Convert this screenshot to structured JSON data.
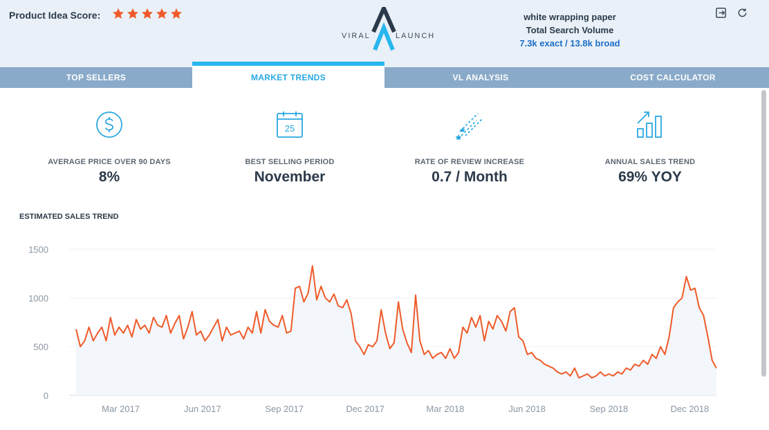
{
  "header": {
    "score_label": "Product Idea Score:",
    "stars": 5,
    "logo": {
      "left": "VIRAL",
      "right": "LAUNCH"
    },
    "keyword": "white wrapping paper",
    "volume_label": "Total Search Volume",
    "volume_value": "7.3k exact / 13.8k broad",
    "icons": [
      "exit-icon",
      "refresh-icon"
    ]
  },
  "tabs": [
    {
      "label": "TOP SELLERS",
      "active": false
    },
    {
      "label": "MARKET TRENDS",
      "active": true
    },
    {
      "label": "VL ANALYSIS",
      "active": false
    },
    {
      "label": "COST CALCULATOR",
      "active": false
    }
  ],
  "metrics": [
    {
      "icon": "dollar-circle-icon",
      "label": "AVERAGE PRICE OVER 90 DAYS",
      "value": "8%"
    },
    {
      "icon": "calendar-icon",
      "label": "BEST SELLING PERIOD",
      "value": "November",
      "calendar_day": "25"
    },
    {
      "icon": "shooting-stars-icon",
      "label": "RATE OF REVIEW INCREASE",
      "value": "0.7 / Month"
    },
    {
      "icon": "bar-growth-icon",
      "label": "ANNUAL SALES TREND",
      "value": "69% YOY"
    }
  ],
  "chart_title": "ESTIMATED SALES TREND",
  "colors": {
    "accent": "#27a9e1",
    "line": "#ef5a28",
    "tab_bg": "#8aaac9",
    "header_bg": "#eaf0f7"
  },
  "chart_data": {
    "type": "line",
    "title": "ESTIMATED SALES TREND",
    "xlabel": "",
    "ylabel": "",
    "ylim": [
      0,
      1500
    ],
    "yticks": [
      0,
      500,
      1000,
      1500
    ],
    "xticks": [
      "Mar 2017",
      "Jun 2017",
      "Sep 2017",
      "Dec 2017",
      "Mar 2018",
      "Jun 2018",
      "Sep 2018",
      "Dec 2018"
    ],
    "grid": true,
    "legend": "none",
    "series": [
      {
        "x_start": "2017-01-02",
        "x_end": "2018-12-31",
        "x_step_weeks": 1,
        "values": [
          680,
          500,
          560,
          700,
          560,
          640,
          700,
          560,
          800,
          620,
          700,
          640,
          720,
          600,
          780,
          680,
          720,
          640,
          800,
          720,
          700,
          820,
          640,
          740,
          820,
          580,
          700,
          860,
          620,
          660,
          560,
          620,
          700,
          780,
          560,
          700,
          620,
          640,
          660,
          580,
          700,
          640,
          860,
          640,
          880,
          760,
          720,
          700,
          820,
          640,
          660,
          1100,
          1120,
          960,
          1050,
          1330,
          980,
          1120,
          1000,
          960,
          1040,
          920,
          900,
          980,
          840,
          560,
          500,
          420,
          520,
          500,
          560,
          880,
          640,
          480,
          540,
          960,
          680,
          540,
          440,
          1030,
          560,
          420,
          460,
          380,
          420,
          440,
          380,
          480,
          380,
          440,
          700,
          640,
          800,
          700,
          820,
          560,
          760,
          680,
          820,
          760,
          660,
          860,
          900,
          600,
          560,
          420,
          440,
          380,
          360,
          320,
          300,
          280,
          240,
          220,
          240,
          200,
          280,
          180,
          200,
          220,
          180,
          200,
          240,
          200,
          220,
          200,
          240,
          220,
          280,
          260,
          320,
          300,
          360,
          320,
          420,
          380,
          500,
          420,
          600,
          900,
          960,
          1000,
          1220,
          1080,
          1100,
          900,
          820,
          600,
          360,
          280
        ]
      }
    ]
  }
}
